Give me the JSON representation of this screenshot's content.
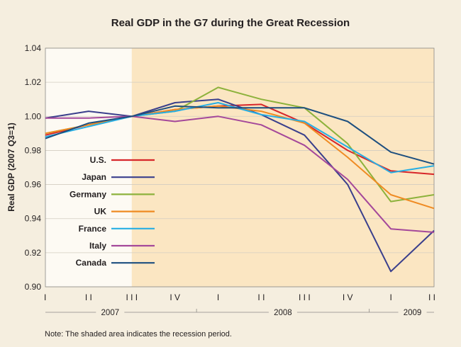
{
  "chart_data": {
    "type": "line",
    "title": "Real GDP in the G7 during the Great Recession",
    "ylabel": "Real GDP (2007 Q3=1)",
    "xlabel": "",
    "ylim": [
      0.9,
      1.04
    ],
    "yticks": [
      "0.90",
      "0.92",
      "0.94",
      "0.96",
      "0.98",
      "1.00",
      "1.02",
      "1.04"
    ],
    "categories": [
      "I",
      "I I",
      "I I I",
      "I V",
      "I",
      "I I",
      "I I I",
      "I V",
      "I",
      "I I"
    ],
    "years": [
      {
        "label": "2007",
        "from": 0,
        "to": 3
      },
      {
        "label": "2008",
        "from": 4,
        "to": 7
      },
      {
        "label": "2009",
        "from": 8,
        "to": 9
      }
    ],
    "recession_shading": {
      "from": 2,
      "to": 9
    },
    "grid": "horizontal",
    "legend_position": "center-left",
    "series": [
      {
        "name": "U.S.",
        "color": "#d7262a",
        "values": [
          0.989,
          0.995,
          1.0,
          1.004,
          1.006,
          1.007,
          0.996,
          0.98,
          0.968,
          0.966
        ]
      },
      {
        "name": "Japan",
        "color": "#3a3f8c",
        "values": [
          0.999,
          1.003,
          1.0,
          1.008,
          1.01,
          1.001,
          0.989,
          0.96,
          0.909,
          0.933
        ]
      },
      {
        "name": "Germany",
        "color": "#8db23c",
        "values": [
          0.99,
          0.995,
          1.0,
          1.003,
          1.017,
          1.01,
          1.005,
          0.984,
          0.95,
          0.954
        ]
      },
      {
        "name": "UK",
        "color": "#ef8b23",
        "values": [
          0.99,
          0.995,
          1.0,
          1.004,
          1.006,
          1.003,
          0.996,
          0.976,
          0.954,
          0.946
        ]
      },
      {
        "name": "France",
        "color": "#27aee3",
        "values": [
          0.988,
          0.994,
          1.0,
          1.003,
          1.008,
          1.001,
          0.997,
          0.982,
          0.967,
          0.971
        ]
      },
      {
        "name": "Italy",
        "color": "#a4489a",
        "values": [
          0.999,
          0.999,
          1.0,
          0.997,
          1.0,
          0.995,
          0.983,
          0.963,
          0.934,
          0.932
        ]
      },
      {
        "name": "Canada",
        "color": "#1d4f7f",
        "values": [
          0.987,
          0.996,
          1.0,
          1.006,
          1.005,
          1.005,
          1.005,
          0.997,
          0.979,
          0.972
        ]
      }
    ],
    "note": "Note: The shaded area indicates the recession period."
  }
}
